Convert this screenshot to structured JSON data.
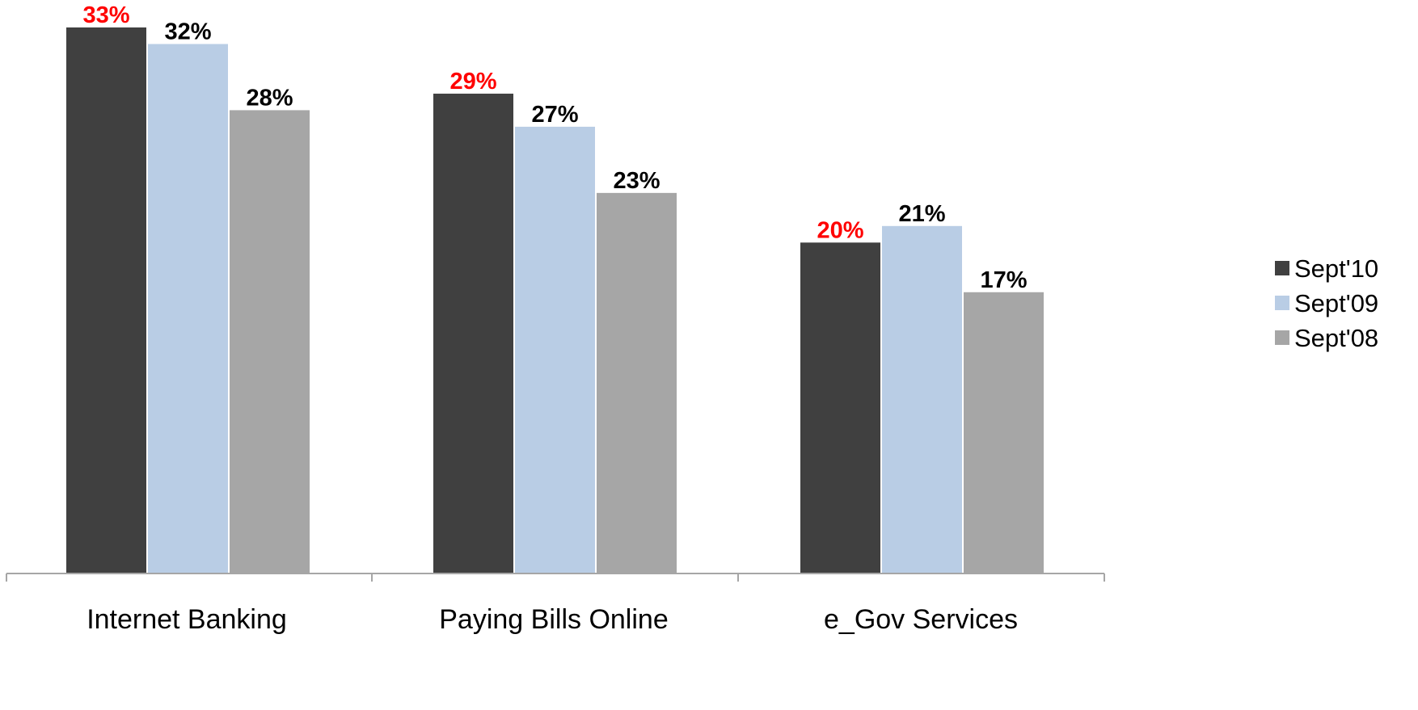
{
  "chart_data": {
    "type": "bar",
    "categories": [
      "Internet Banking",
      "Paying Bills Online",
      "e_Gov Services"
    ],
    "series": [
      {
        "name": "Sept'10",
        "values": [
          33,
          29,
          20
        ],
        "color": "#404040",
        "labels": [
          "33%",
          "29%",
          "20%"
        ],
        "label_color": "#ff0000"
      },
      {
        "name": "Sept'09",
        "values": [
          32,
          27,
          21
        ],
        "color": "#b9cde5",
        "labels": [
          "32%",
          "27%",
          "21%"
        ],
        "label_color": "#000000"
      },
      {
        "name": "Sept'08",
        "values": [
          28,
          23,
          17
        ],
        "color": "#a6a6a6",
        "labels": [
          "28%",
          "23%",
          "17%"
        ],
        "label_color": "#000000"
      }
    ],
    "ylim": [
      0,
      33
    ],
    "grid": false,
    "legend_position": "right"
  }
}
